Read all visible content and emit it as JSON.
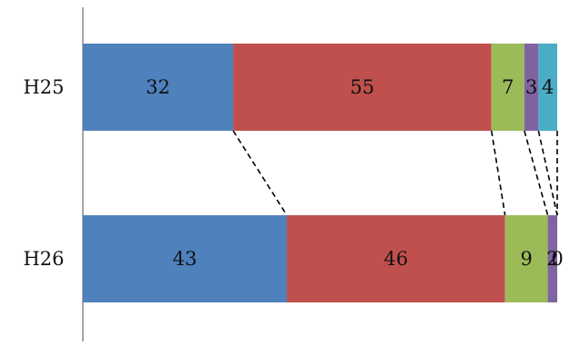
{
  "chart_data": {
    "type": "bar",
    "orientation": "horizontal",
    "stacked": true,
    "normalized_to_100": true,
    "categories": [
      "H25",
      "H26"
    ],
    "series": [
      {
        "values": [
          32,
          43
        ],
        "color": "#4F81BD"
      },
      {
        "values": [
          55,
          46
        ],
        "color": "#C0504D"
      },
      {
        "values": [
          7,
          9
        ],
        "color": "#9BBB59"
      },
      {
        "values": [
          3,
          2
        ],
        "color": "#8064A2"
      },
      {
        "values": [
          4,
          0
        ],
        "color": "#4BACC6"
      }
    ],
    "connector_lines": "dashed",
    "legend": "none",
    "grid": false,
    "title": "",
    "xlabel": "",
    "ylabel": ""
  }
}
